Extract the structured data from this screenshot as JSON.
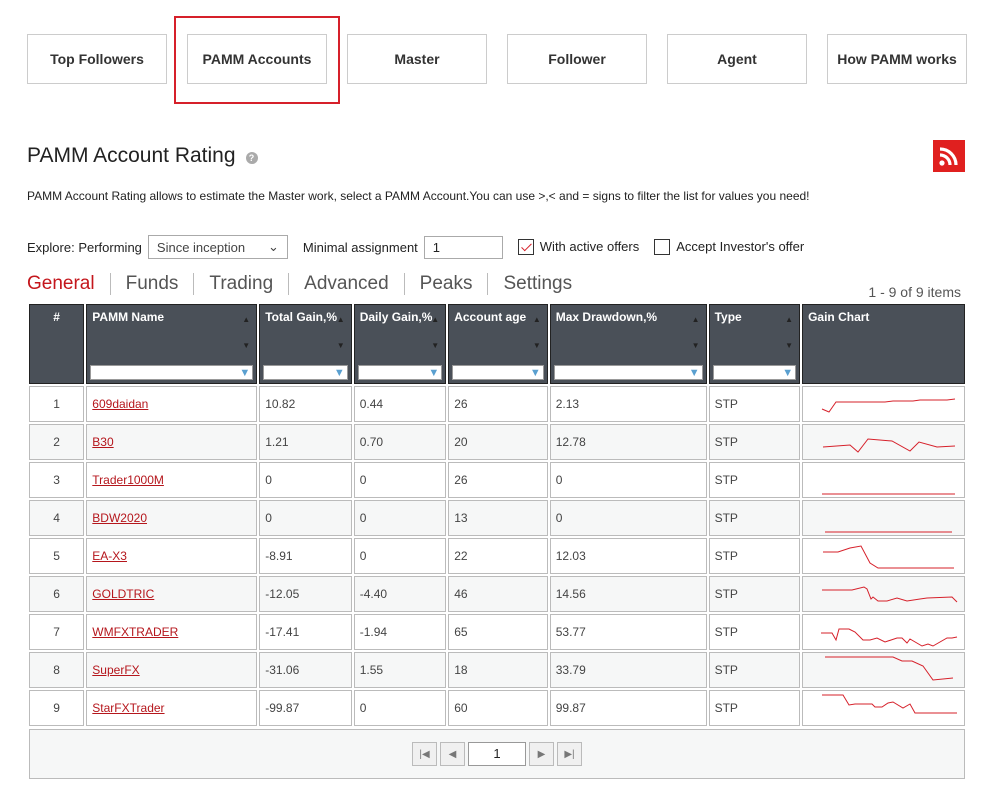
{
  "topnav": [
    "Top Followers",
    "PAMM Accounts",
    "Master",
    "Follower",
    "Agent",
    "How PAMM works"
  ],
  "title": "PAMM Account Rating",
  "description": "PAMM Account Rating allows to estimate the Master work, select a PAMM Account.You can use >,< and = signs to filter the list for values you need!",
  "filters": {
    "explore_label": "Explore:",
    "performing_label": "Performing",
    "period": "Since inception",
    "min_label": "Minimal assignment",
    "min_value": "1",
    "active_offers": "With active offers",
    "active_offers_checked": true,
    "accept_offer": "Accept Investor's offer",
    "accept_offer_checked": false
  },
  "tabs": [
    "General",
    "Funds",
    "Trading",
    "Advanced",
    "Peaks",
    "Settings"
  ],
  "count": "1 - 9 of 9 items",
  "columns": [
    "#",
    "PAMM Name",
    "Total Gain,%",
    "Daily Gain,%",
    "Account age",
    "Max Drawdown,%",
    "Type",
    "Gain Chart"
  ],
  "rows": [
    [
      "1",
      "609daidan",
      "10.82",
      "0.44",
      "26",
      "2.13",
      "STP"
    ],
    [
      "2",
      "B30",
      "1.21",
      "0.70",
      "20",
      "12.78",
      "STP"
    ],
    [
      "3",
      "Trader1000M",
      "0",
      "0",
      "26",
      "0",
      "STP"
    ],
    [
      "4",
      "BDW2020",
      "0",
      "0",
      "13",
      "0",
      "STP"
    ],
    [
      "5",
      "EA-X3",
      "-8.91",
      "0",
      "22",
      "12.03",
      "STP"
    ],
    [
      "6",
      "GOLDTRIC",
      "-12.05",
      "-4.40",
      "46",
      "14.56",
      "STP"
    ],
    [
      "7",
      "WMFXTRADER",
      "-17.41",
      "-1.94",
      "65",
      "53.77",
      "STP"
    ],
    [
      "8",
      "SuperFX",
      "-31.06",
      "1.55",
      "18",
      "33.79",
      "STP"
    ],
    [
      "9",
      "StarFXTrader",
      "-99.87",
      "0",
      "60",
      "99.87",
      "STP"
    ]
  ],
  "pager": {
    "page": "1"
  },
  "colors": {
    "accent": "#d6202a",
    "header": "#4a5058",
    "link": "#b5161c"
  }
}
